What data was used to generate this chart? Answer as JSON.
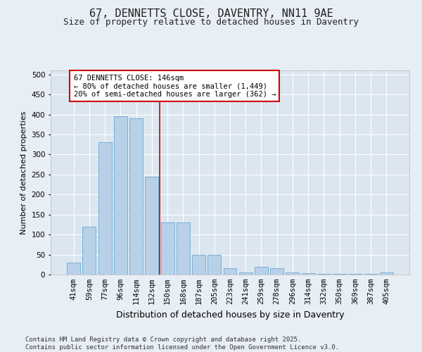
{
  "title": "67, DENNETTS CLOSE, DAVENTRY, NN11 9AE",
  "subtitle": "Size of property relative to detached houses in Daventry",
  "xlabel": "Distribution of detached houses by size in Daventry",
  "ylabel": "Number of detached properties",
  "categories": [
    "41sqm",
    "59sqm",
    "77sqm",
    "96sqm",
    "114sqm",
    "132sqm",
    "150sqm",
    "168sqm",
    "187sqm",
    "205sqm",
    "223sqm",
    "241sqm",
    "259sqm",
    "278sqm",
    "296sqm",
    "314sqm",
    "332sqm",
    "350sqm",
    "369sqm",
    "387sqm",
    "405sqm"
  ],
  "values": [
    30,
    120,
    330,
    395,
    390,
    245,
    130,
    130,
    50,
    50,
    15,
    5,
    20,
    15,
    5,
    3,
    2,
    1,
    1,
    1,
    5
  ],
  "bar_color": "#b8d0e8",
  "bar_edge_color": "#6aaad4",
  "vline_index": 6,
  "vline_color": "#cc0000",
  "annotation_text": "67 DENNETTS CLOSE: 146sqm\n← 80% of detached houses are smaller (1,449)\n20% of semi-detached houses are larger (362) →",
  "annotation_box_color": "#ffffff",
  "annotation_box_edge_color": "#cc0000",
  "ylim": [
    0,
    510
  ],
  "yticks": [
    0,
    50,
    100,
    150,
    200,
    250,
    300,
    350,
    400,
    450,
    500
  ],
  "bg_color": "#e8eef5",
  "plot_bg_color": "#dce6f0",
  "grid_color": "#ffffff",
  "footer": "Contains HM Land Registry data © Crown copyright and database right 2025.\nContains public sector information licensed under the Open Government Licence v3.0.",
  "title_fontsize": 11,
  "subtitle_fontsize": 9,
  "ylabel_fontsize": 8,
  "xlabel_fontsize": 9,
  "tick_fontsize": 7.5,
  "footer_fontsize": 6.5,
  "annot_fontsize": 7.5
}
